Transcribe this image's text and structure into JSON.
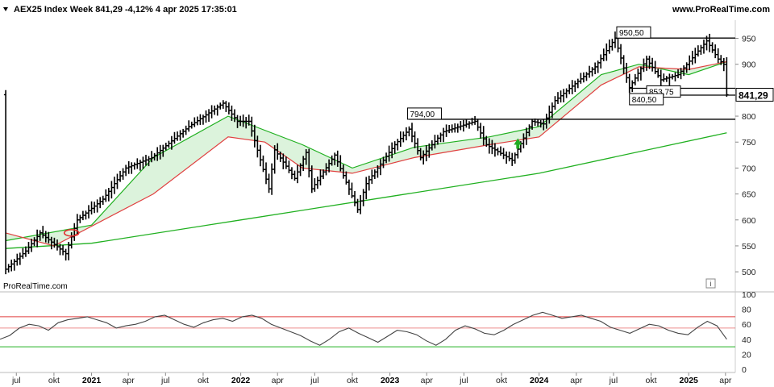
{
  "header": {
    "title": "AEX25 Index Week 841,29 -4,12% 4 apr 2025 17:35:01",
    "site": "www.ProRealTime.com",
    "watermark": "ProRealTime.com"
  },
  "chart_data": [
    {
      "type": "candlestick",
      "title": "AEX25 Index Week",
      "last_value": 841.29,
      "last_label": "841,29",
      "change_pct": -4.12,
      "y_ticks": [
        "950",
        "900",
        "850",
        "800",
        "750",
        "700",
        "650",
        "600",
        "550",
        "500"
      ],
      "ylim": [
        480,
        985
      ],
      "x_ticks": [
        "jul",
        "okt",
        "2021",
        "apr",
        "jul",
        "okt",
        "2022",
        "apr",
        "jul",
        "okt",
        "2023",
        "apr",
        "jul",
        "okt",
        "2024",
        "apr",
        "jul",
        "okt",
        "2025",
        "apr"
      ],
      "x_ticks_bold": [
        "2021",
        "2022",
        "2023",
        "2024",
        "2025"
      ],
      "price_path": [
        [
          "2020-06-05",
          505
        ],
        [
          "2020-07-24",
          540
        ],
        [
          "2020-08-28",
          575
        ],
        [
          "2020-10-30",
          535
        ],
        [
          "2020-11-27",
          600
        ],
        [
          "2021-01-29",
          640
        ],
        [
          "2021-03-26",
          700
        ],
        [
          "2021-05-28",
          720
        ],
        [
          "2021-08-27",
          780
        ],
        [
          "2021-11-19",
          825
        ],
        [
          "2021-12-24",
          790
        ],
        [
          "2022-01-21",
          790
        ],
        [
          "2022-03-11",
          660
        ],
        [
          "2022-03-25",
          735
        ],
        [
          "2022-05-13",
          680
        ],
        [
          "2022-06-10",
          730
        ],
        [
          "2022-06-24",
          660
        ],
        [
          "2022-08-19",
          725
        ],
        [
          "2022-10-14",
          620
        ],
        [
          "2022-11-04",
          670
        ],
        [
          "2023-01-13",
          745
        ],
        [
          "2023-02-17",
          775
        ],
        [
          "2023-03-17",
          720
        ],
        [
          "2023-05-12",
          770
        ],
        [
          "2023-07-28",
          790
        ],
        [
          "2023-08-25",
          745
        ],
        [
          "2023-10-27",
          715
        ],
        [
          "2023-12-15",
          790
        ],
        [
          "2024-01-12",
          785
        ],
        [
          "2024-02-09",
          830
        ],
        [
          "2024-05-17",
          895
        ],
        [
          "2024-07-05",
          950
        ],
        [
          "2024-08-09",
          855
        ],
        [
          "2024-09-20",
          910
        ],
        [
          "2024-10-25",
          870
        ],
        [
          "2024-12-06",
          880
        ],
        [
          "2025-02-14",
          945
        ],
        [
          "2025-03-14",
          910
        ],
        [
          "2025-03-28",
          900
        ],
        [
          "2025-04-04",
          841.29
        ]
      ],
      "ma_slow": [
        [
          "2020-06-05",
          545
        ],
        [
          "2021-01-01",
          555
        ],
        [
          "2022-01-01",
          600
        ],
        [
          "2023-01-01",
          645
        ],
        [
          "2024-01-01",
          690
        ],
        [
          "2025-04-04",
          768
        ]
      ],
      "ma_fast": [
        [
          "2020-06-05",
          575
        ],
        [
          "2020-10-01",
          550
        ],
        [
          "2021-06-01",
          650
        ],
        [
          "2021-12-01",
          760
        ],
        [
          "2022-03-01",
          750
        ],
        [
          "2022-06-01",
          700
        ],
        [
          "2022-10-01",
          690
        ],
        [
          "2023-03-01",
          720
        ],
        [
          "2023-09-01",
          745
        ],
        [
          "2024-01-01",
          760
        ],
        [
          "2024-06-01",
          860
        ],
        [
          "2024-09-01",
          895
        ],
        [
          "2025-01-01",
          890
        ],
        [
          "2025-04-04",
          905
        ]
      ],
      "ma_mid": [
        [
          "2020-06-05",
          560
        ],
        [
          "2021-01-01",
          590
        ],
        [
          "2021-06-01",
          720
        ],
        [
          "2021-12-01",
          800
        ],
        [
          "2022-06-01",
          745
        ],
        [
          "2022-10-01",
          700
        ],
        [
          "2023-03-01",
          740
        ],
        [
          "2023-09-01",
          760
        ],
        [
          "2024-01-01",
          780
        ],
        [
          "2024-06-01",
          880
        ],
        [
          "2024-09-01",
          900
        ],
        [
          "2025-01-01",
          880
        ],
        [
          "2025-04-04",
          905
        ]
      ],
      "levels": [
        {
          "label": "950,50",
          "value": 950.5
        },
        {
          "label": "794,00",
          "value": 794.0
        },
        {
          "label": "853,75",
          "value": 853.75
        },
        {
          "label": "840,50",
          "value": 840.5
        }
      ],
      "colors": {
        "bars": "#000000",
        "ma_fast": "#e04040",
        "ma_mid": "#20b020",
        "ma_slow": "#20b020",
        "fill": "#d8f2d8",
        "fill_red": "#f8d8d8",
        "marker": "#e03030",
        "arrow": "#22aa22"
      }
    },
    {
      "type": "line",
      "title": "",
      "y_ticks": [
        "100",
        "80",
        "60",
        "40",
        "20",
        "0"
      ],
      "ylim": [
        0,
        100
      ],
      "overbought": 70,
      "oversold": 30,
      "mid": 55,
      "overbought_label": "",
      "oversold_label": "",
      "values": [
        40,
        45,
        55,
        60,
        58,
        52,
        62,
        66,
        68,
        70,
        66,
        62,
        55,
        58,
        60,
        64,
        70,
        72,
        66,
        60,
        56,
        62,
        66,
        68,
        64,
        70,
        72,
        68,
        60,
        55,
        50,
        45,
        38,
        32,
        40,
        50,
        55,
        48,
        42,
        36,
        44,
        52,
        50,
        46,
        38,
        32,
        40,
        52,
        58,
        54,
        48,
        46,
        52,
        60,
        66,
        72,
        76,
        72,
        68,
        70,
        72,
        68,
        64,
        56,
        52,
        48,
        54,
        60,
        58,
        52,
        48,
        46,
        56,
        64,
        58,
        40
      ]
    }
  ]
}
